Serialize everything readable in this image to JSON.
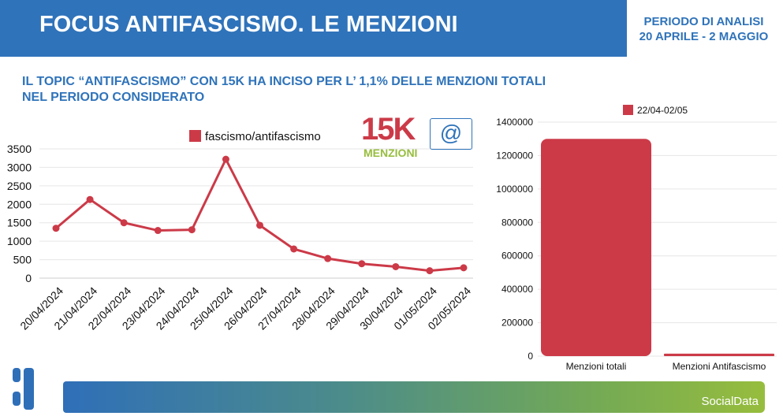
{
  "header": {
    "title": "FOCUS ANTIFASCISMO. LE MENZIONI",
    "period_label": "PERIODO DI ANALISI",
    "period_range": "20 APRILE - 2 MAGGIO"
  },
  "subtitle": {
    "line1": "IL TOPIC “ANTIFASCISMO” CON 15K HA INCISO PER L’ 1,1% DELLE MENZIONI TOTALI",
    "line2": "NEL PERIODO CONSIDERATO"
  },
  "badge": {
    "value": "15K",
    "label": "MENZIONI"
  },
  "footer": {
    "brand": "SocialData"
  },
  "colors": {
    "blue": "#2f73ba",
    "red": "#cc3a48",
    "green": "#97bd3d"
  },
  "chart_data": [
    {
      "type": "line",
      "legend": [
        "fascismo/antifascismo"
      ],
      "legend_placement": "top",
      "ylim": [
        0,
        3500
      ],
      "yticks": [
        0,
        500,
        1000,
        1500,
        2000,
        2500,
        3000,
        3500
      ],
      "categories": [
        "20/04/2024",
        "21/04/2024",
        "22/04/2024",
        "23/04/2024",
        "24/04/2024",
        "25/04/2024",
        "26/04/2024",
        "27/04/2024",
        "28/04/2024",
        "29/04/2024",
        "30/04/2024",
        "01/05/2024",
        "02/05/2024"
      ],
      "series": [
        {
          "name": "fascismo/antifascismo",
          "values": [
            1350,
            2130,
            1500,
            1290,
            1310,
            3220,
            1430,
            790,
            530,
            390,
            310,
            200,
            280
          ]
        }
      ],
      "grid": true
    },
    {
      "type": "bar",
      "legend": [
        "22/04-02/05"
      ],
      "legend_placement": "top",
      "ylim": [
        0,
        1400000
      ],
      "yticks": [
        0,
        200000,
        400000,
        600000,
        800000,
        1000000,
        1200000,
        1400000
      ],
      "categories": [
        "Menzioni totali",
        "Menzioni Antifascismo"
      ],
      "values": [
        1300000,
        15000
      ],
      "grid": true
    }
  ]
}
